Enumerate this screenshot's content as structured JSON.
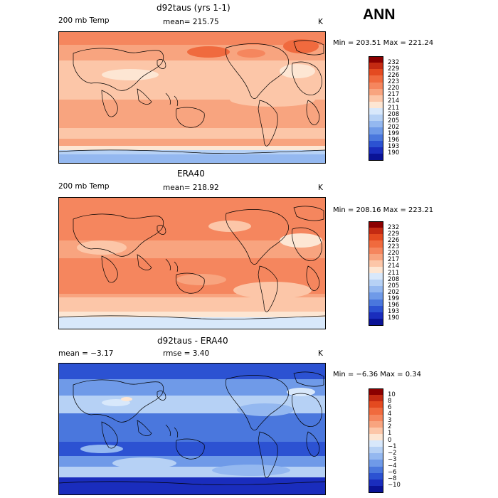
{
  "season": "ANN",
  "panels": [
    {
      "title": "d92taus (yrs 1-1)",
      "left_label": "200 mb Temp",
      "center_label": "mean=  215.75",
      "units": "K",
      "minmax": "Min = 203.51  Max = 221.24",
      "colorbar_labels": [
        "232",
        "229",
        "226",
        "223",
        "220",
        "217",
        "214",
        "211",
        "208",
        "205",
        "202",
        "199",
        "196",
        "193",
        "190"
      ],
      "colors": [
        "#8b0000",
        "#c42a12",
        "#e44a20",
        "#f06a3e",
        "#f5865e",
        "#f8a47f",
        "#fcc6a8",
        "#fde6d3",
        "#d8e8fb",
        "#b6d1f5",
        "#94b8f0",
        "#6f9ae8",
        "#4a77dd",
        "#2c52d2",
        "#1a2dbd",
        "#0a1396"
      ],
      "field_scheme": "warm"
    },
    {
      "title": "ERA40",
      "left_label": "200 mb Temp",
      "center_label": "mean=  218.92",
      "units": "K",
      "minmax": "Min = 208.16  Max = 223.21",
      "colorbar_labels": [
        "232",
        "229",
        "226",
        "223",
        "220",
        "217",
        "214",
        "211",
        "208",
        "205",
        "202",
        "199",
        "196",
        "193",
        "190"
      ],
      "colors": [
        "#8b0000",
        "#c42a12",
        "#e44a20",
        "#f06a3e",
        "#f5865e",
        "#f8a47f",
        "#fcc6a8",
        "#fde6d3",
        "#d8e8fb",
        "#b6d1f5",
        "#94b8f0",
        "#6f9ae8",
        "#4a77dd",
        "#2c52d2",
        "#1a2dbd",
        "#0a1396"
      ],
      "field_scheme": "hot"
    },
    {
      "title": "d92taus - ERA40",
      "left_label": "mean =   −3.17",
      "center_label": "rmse =    3.40",
      "units": "K",
      "minmax": "Min =  −6.36  Max =    0.34",
      "colorbar_labels": [
        "10",
        "8",
        "6",
        "4",
        "3",
        "2",
        "1",
        "0",
        "−1",
        "−2",
        "−3",
        "−4",
        "−6",
        "−8",
        "−10"
      ],
      "colors": [
        "#8b0000",
        "#c42a12",
        "#e44a20",
        "#f06a3e",
        "#f5865e",
        "#f8a47f",
        "#fcc6a8",
        "#fde6d3",
        "#d8e8fb",
        "#b6d1f5",
        "#94b8f0",
        "#6f9ae8",
        "#4a77dd",
        "#2c52d2",
        "#1a2dbd",
        "#0a1396"
      ],
      "field_scheme": "cold"
    }
  ],
  "chart_data": [
    {
      "type": "heatmap",
      "title": "d92taus (yrs 1-1)",
      "variable": "200 mb Temp",
      "units": "K",
      "mean": 215.75,
      "min": 203.51,
      "max": 221.24,
      "contour_levels": [
        190,
        193,
        196,
        199,
        202,
        205,
        208,
        211,
        214,
        217,
        220,
        223,
        226,
        229,
        232
      ],
      "xlabel": "",
      "ylabel": ""
    },
    {
      "type": "heatmap",
      "title": "ERA40",
      "variable": "200 mb Temp",
      "units": "K",
      "mean": 218.92,
      "min": 208.16,
      "max": 223.21,
      "contour_levels": [
        190,
        193,
        196,
        199,
        202,
        205,
        208,
        211,
        214,
        217,
        220,
        223,
        226,
        229,
        232
      ],
      "xlabel": "",
      "ylabel": ""
    },
    {
      "type": "heatmap",
      "title": "d92taus - ERA40",
      "units": "K",
      "mean": -3.17,
      "rmse": 3.4,
      "min": -6.36,
      "max": 0.34,
      "contour_levels": [
        -10,
        -8,
        -6,
        -4,
        -3,
        -2,
        -1,
        0,
        1,
        2,
        3,
        4,
        6,
        8,
        10
      ],
      "xlabel": "",
      "ylabel": ""
    }
  ]
}
